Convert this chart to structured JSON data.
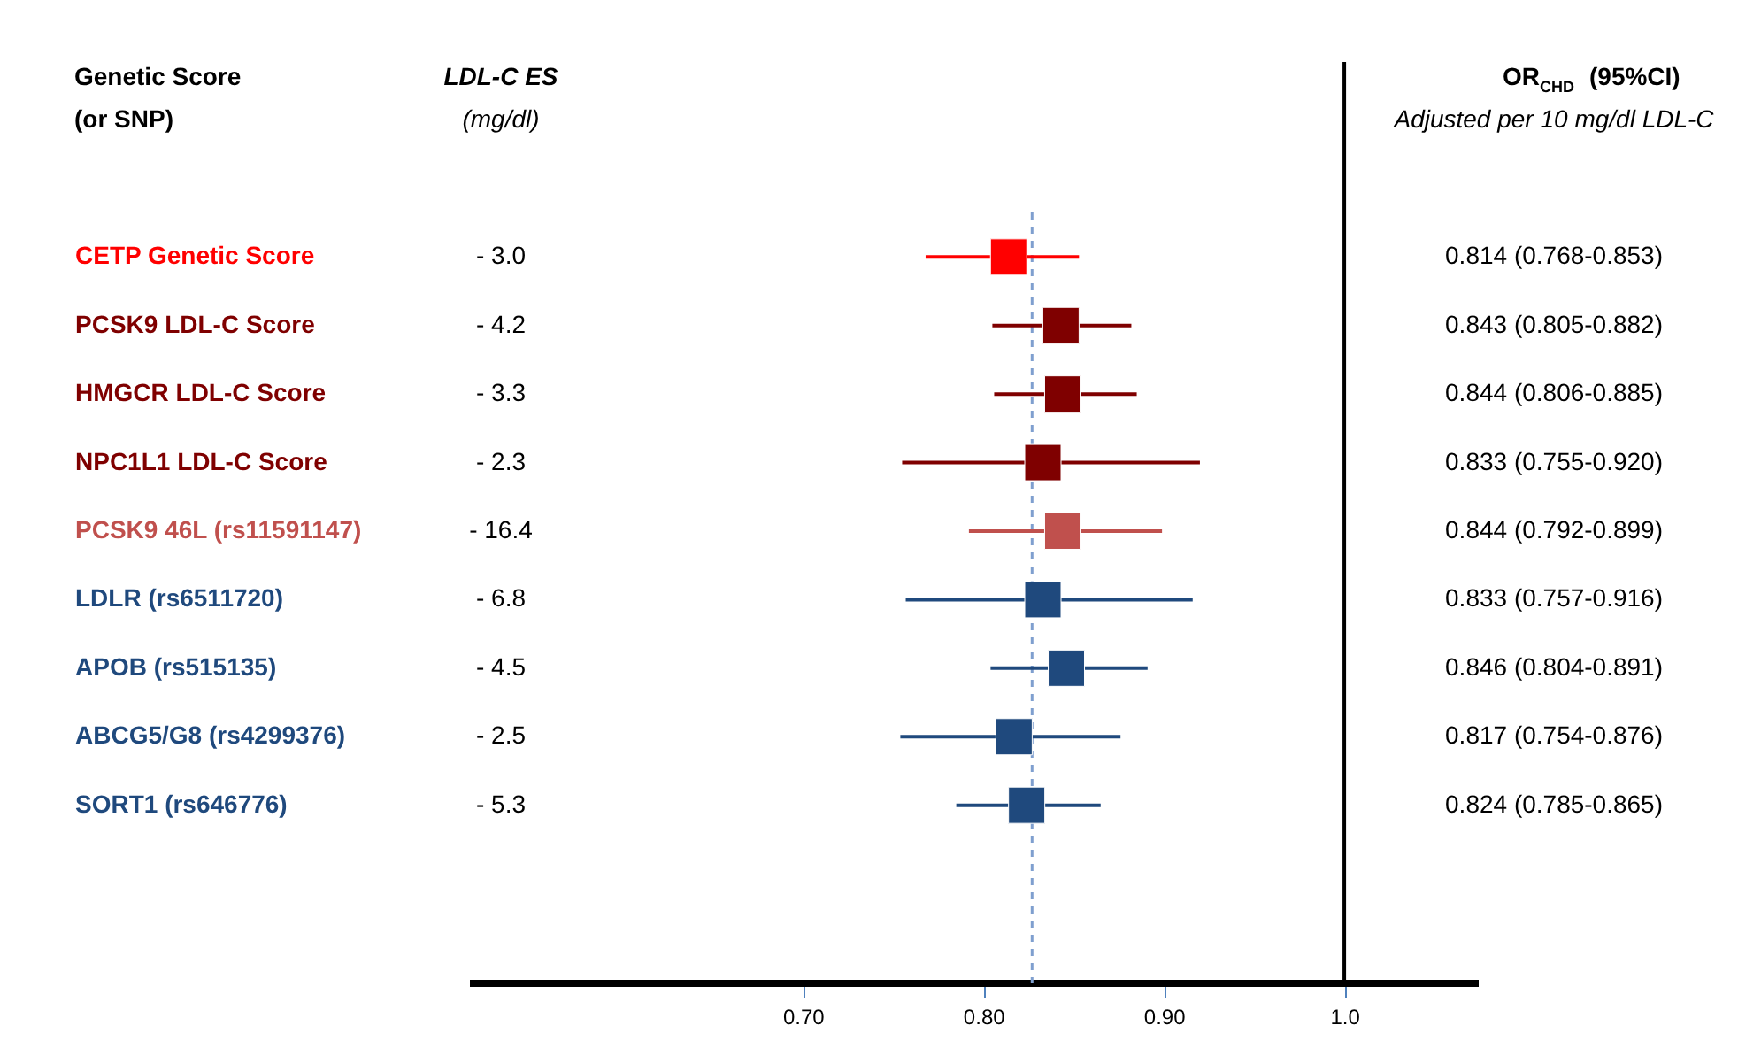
{
  "chart_data": {
    "type": "scatter",
    "orientation": "horizontal",
    "marker": "square",
    "ylabel": "Genetic Score\n(or SNP)",
    "categories": [
      "CETP Genetic Score",
      "PCSK9 LDL-C Score",
      "HMGCR LDL-C Score",
      "NPC1L1 LDL-C Score",
      "PCSK9 46L (rs11591147)",
      "LDLR (rs6511720)",
      "APOB (rs515135)",
      "ABCG5/G8 (rs4299376)",
      "SORT1 (rs646776)"
    ],
    "values": [
      0.814,
      0.843,
      0.844,
      0.833,
      0.844,
      0.833,
      0.846,
      0.817,
      0.824
    ],
    "errors": [
      [
        0.768,
        0.853
      ],
      [
        0.805,
        0.882
      ],
      [
        0.806,
        0.885
      ],
      [
        0.755,
        0.92
      ],
      [
        0.792,
        0.899
      ],
      [
        0.757,
        0.916
      ],
      [
        0.804,
        0.891
      ],
      [
        0.754,
        0.876
      ],
      [
        0.785,
        0.865
      ]
    ],
    "colors": [
      "#ff0000",
      "#7f0000",
      "#7f0000",
      "#7f0000",
      "#c0504d",
      "#1f497d",
      "#1f497d",
      "#1f497d",
      "#1f497d"
    ],
    "value_labels": [
      "0.814 (0.768-0.853)",
      "0.843 (0.805-0.882)",
      "0.844 (0.806-0.885)",
      "0.833 (0.755-0.920)",
      "0.844 (0.792-0.899)",
      "0.833 (0.757-0.916)",
      "0.846 (0.804-0.891)",
      "0.817 (0.754-0.876)",
      "0.824 (0.785-0.865)"
    ],
    "xlim": [
      0.515,
      1.074
    ],
    "xticks": [
      {
        "value": 0.7,
        "label": "0.70"
      },
      {
        "value": 0.8,
        "label": "0.80"
      },
      {
        "value": 0.9,
        "label": "0.90"
      },
      {
        "value": 1.0,
        "label": "1.0"
      }
    ],
    "ref_lines": [
      {
        "axis": "x",
        "value": 0.827,
        "color": "#7f9fcf",
        "line_style": "dashed"
      },
      {
        "axis": "x",
        "value": 1.0,
        "color": "#000000",
        "line_style": "solid"
      }
    ],
    "annotations": [
      "LDL-C  ES\n(mg/dl)",
      "OR$_{CHD}$ (95%CI)\nAdjusted per 10 mg/dl LDL-C",
      "- 3.0",
      "- 4.2",
      "- 3.3",
      "- 2.3",
      "- 16.4",
      "- 6.8",
      "- 4.5",
      "- 2.5",
      "- 5.3"
    ],
    "grid": false
  }
}
